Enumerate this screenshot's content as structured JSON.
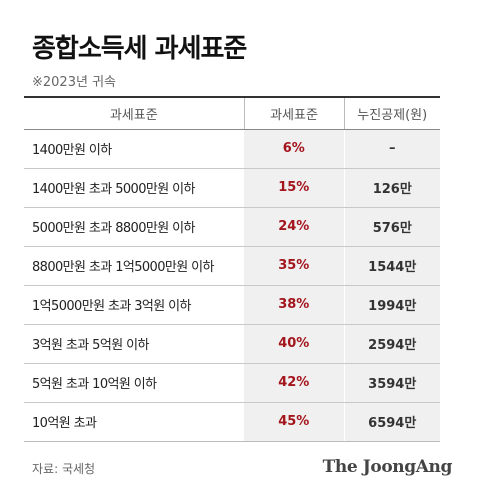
{
  "title": "종합소득세 과세표준",
  "subtitle": "※2023년 귀속",
  "table": {
    "headers": [
      "과세표준",
      "과세표준",
      "누진공제(원)"
    ],
    "rows": [
      {
        "bracket": "1400만원 이하",
        "rate": "6%",
        "deduction": "–"
      },
      {
        "bracket": "1400만원 초과 5000만원 이하",
        "rate": "15%",
        "deduction": "126만"
      },
      {
        "bracket": "5000만원 초과 8800만원 이하",
        "rate": "24%",
        "deduction": "576만"
      },
      {
        "bracket": "8800만원 초과 1억5000만원 이하",
        "rate": "35%",
        "deduction": "1544만"
      },
      {
        "bracket": "1억5000만원 초과 3억원 이하",
        "rate": "38%",
        "deduction": "1994만"
      },
      {
        "bracket": "3억원 초과 5억원 이하",
        "rate": "40%",
        "deduction": "2594만"
      },
      {
        "bracket": "5억원 초과 10억원 이하",
        "rate": "42%",
        "deduction": "3594만"
      },
      {
        "bracket": "10억원 초과",
        "rate": "45%",
        "deduction": "6594만"
      }
    ]
  },
  "source": "자료: 국세청",
  "logo": "The JoongAng",
  "colors": {
    "rate_text": "#a3151c",
    "column_background": "#f0f0f0"
  }
}
